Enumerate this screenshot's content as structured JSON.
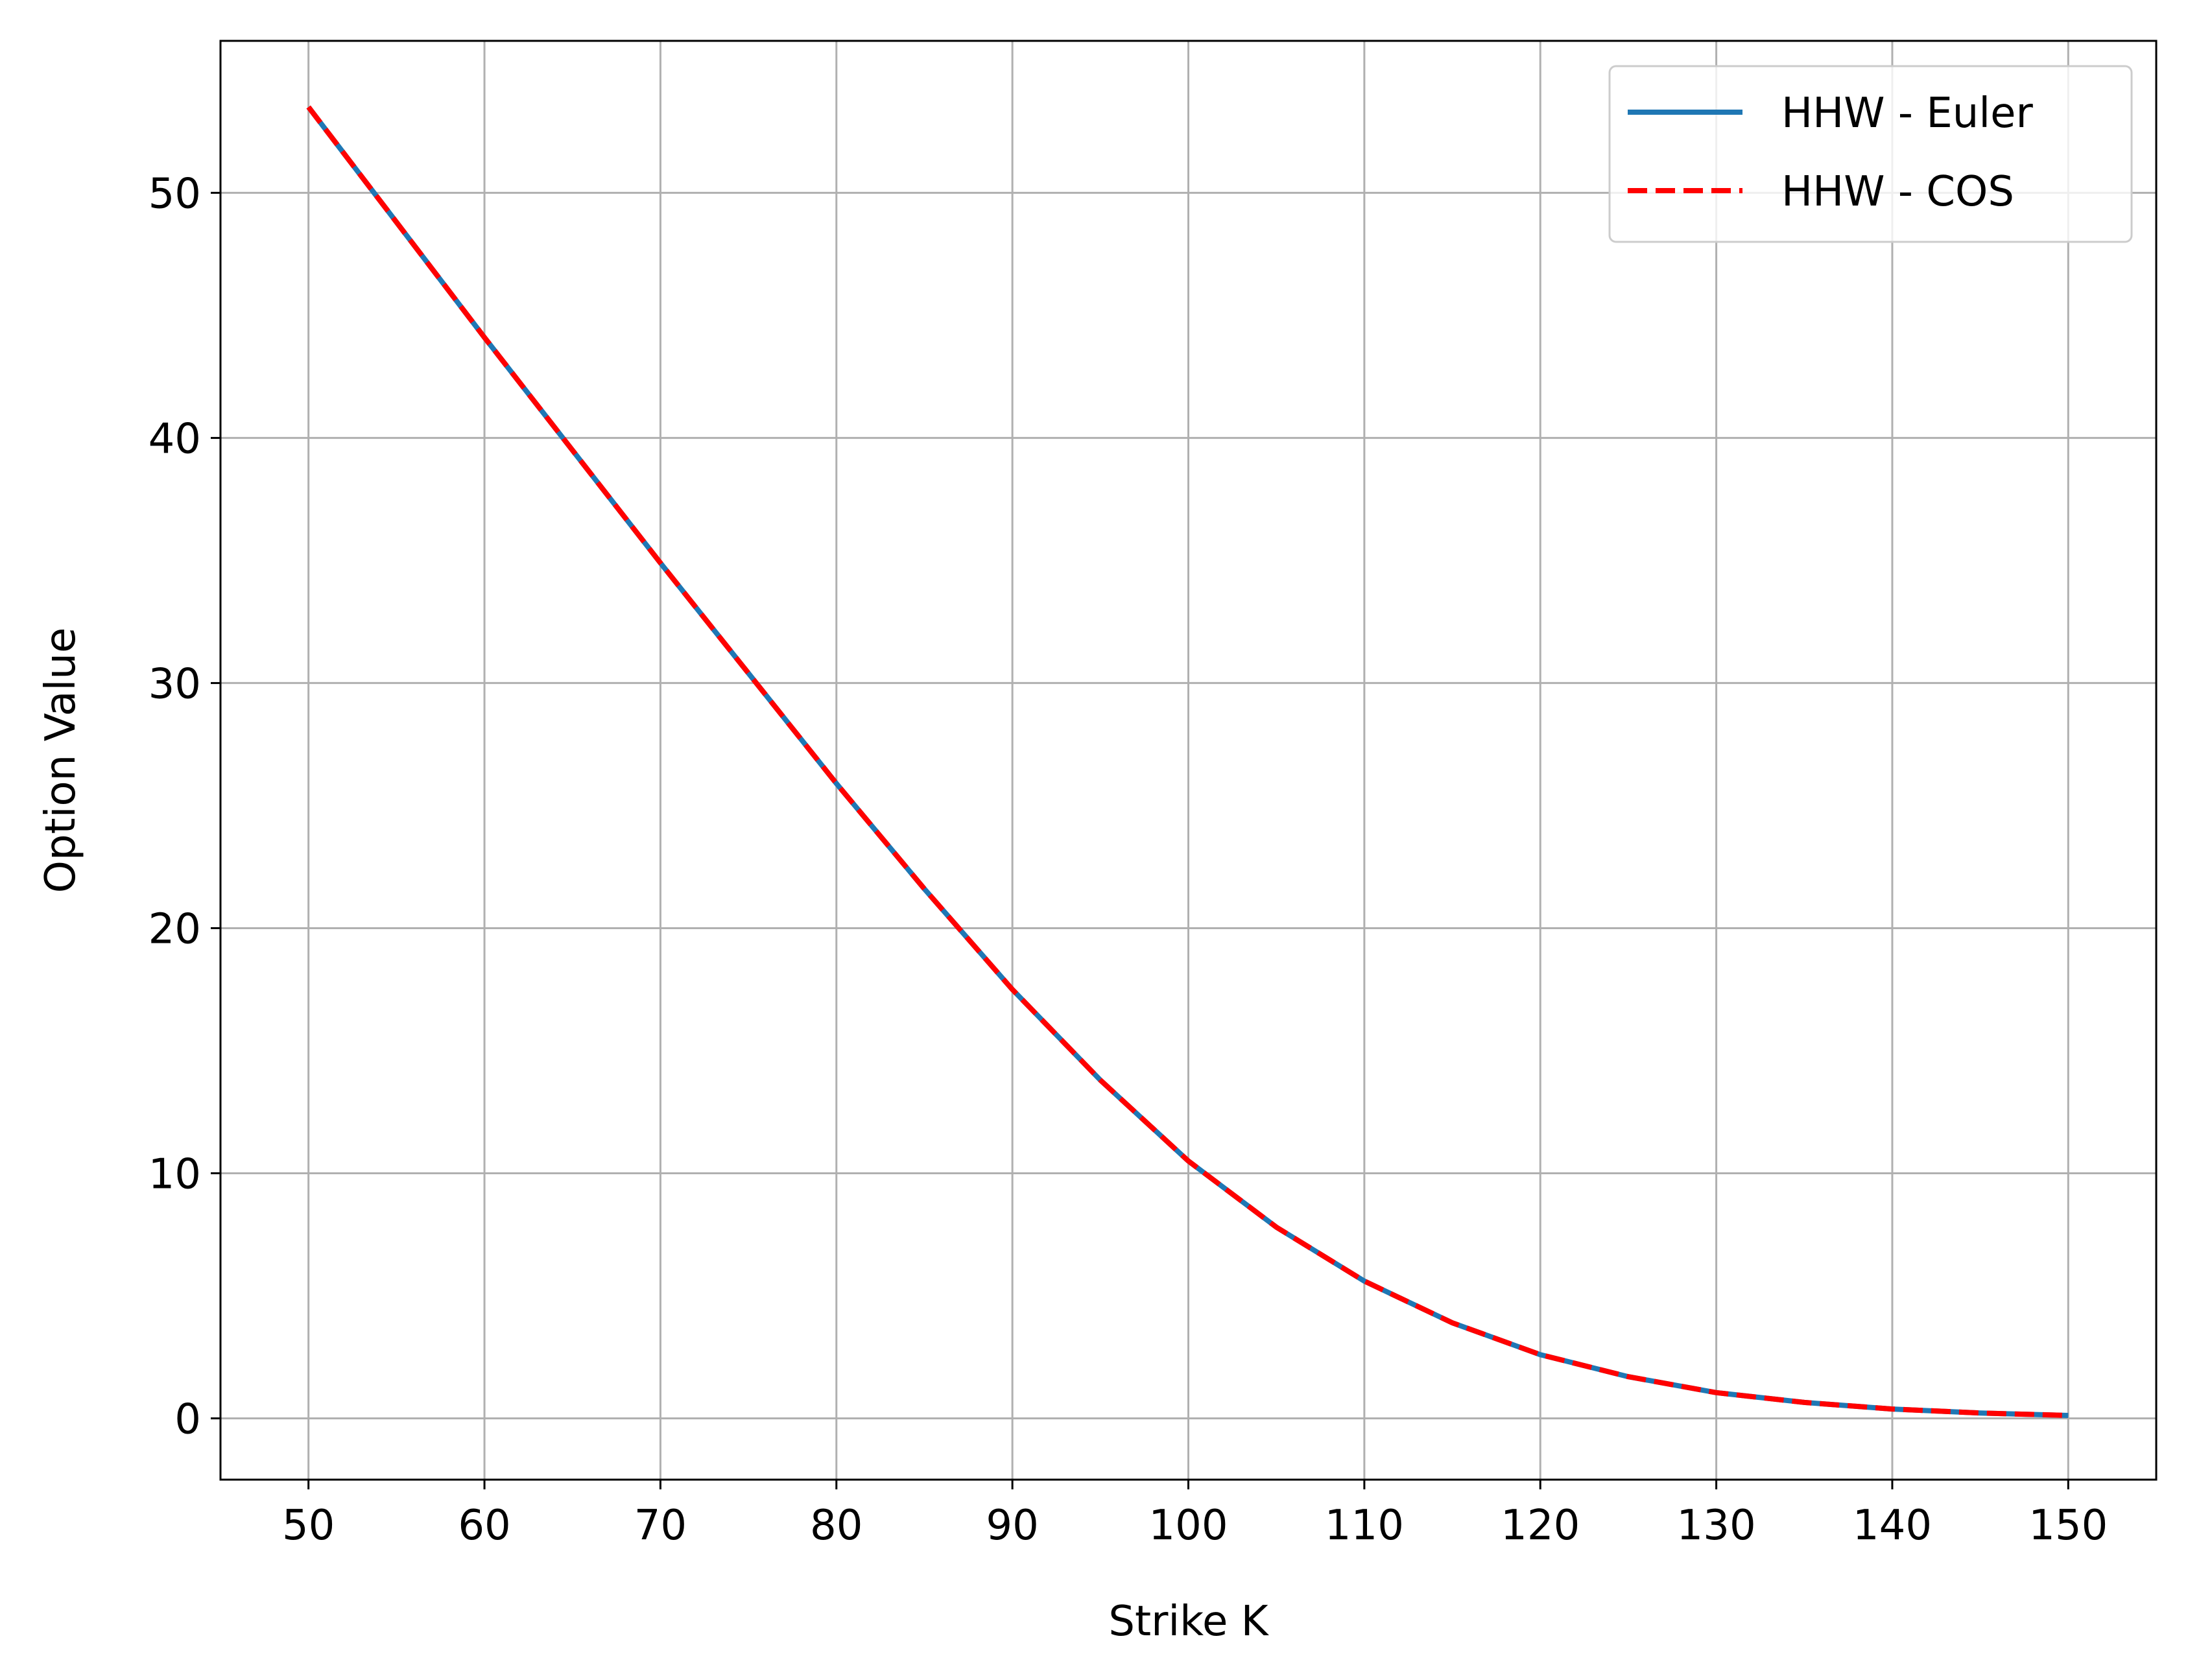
{
  "chart_data": {
    "type": "line",
    "title": "",
    "xlabel": "Strike K",
    "ylabel": "Option Value",
    "xlim": [
      45,
      155
    ],
    "ylim": [
      -2.5,
      56.2
    ],
    "xticks": [
      50,
      60,
      70,
      80,
      90,
      100,
      110,
      120,
      130,
      140,
      150
    ],
    "yticks": [
      0,
      10,
      20,
      30,
      40,
      50
    ],
    "grid": true,
    "legend_position": "top-right",
    "x": [
      50,
      55,
      60,
      65,
      70,
      75,
      80,
      85,
      90,
      95,
      100,
      105,
      110,
      115,
      120,
      125,
      130,
      135,
      140,
      145,
      150
    ],
    "series": [
      {
        "name": "HHW - Euler",
        "color": "#1f77b4",
        "style": "solid",
        "values": [
          53.5,
          48.8,
          44.1,
          39.5,
          34.9,
          30.4,
          25.9,
          21.6,
          17.5,
          13.8,
          10.5,
          7.8,
          5.6,
          3.9,
          2.6,
          1.7,
          1.05,
          0.65,
          0.38,
          0.22,
          0.12
        ]
      },
      {
        "name": "HHW - COS",
        "color": "#ff0000",
        "style": "dashed",
        "values": [
          53.5,
          48.8,
          44.1,
          39.5,
          34.9,
          30.4,
          25.9,
          21.6,
          17.5,
          13.8,
          10.5,
          7.8,
          5.6,
          3.9,
          2.6,
          1.7,
          1.05,
          0.65,
          0.38,
          0.22,
          0.12
        ]
      }
    ]
  }
}
